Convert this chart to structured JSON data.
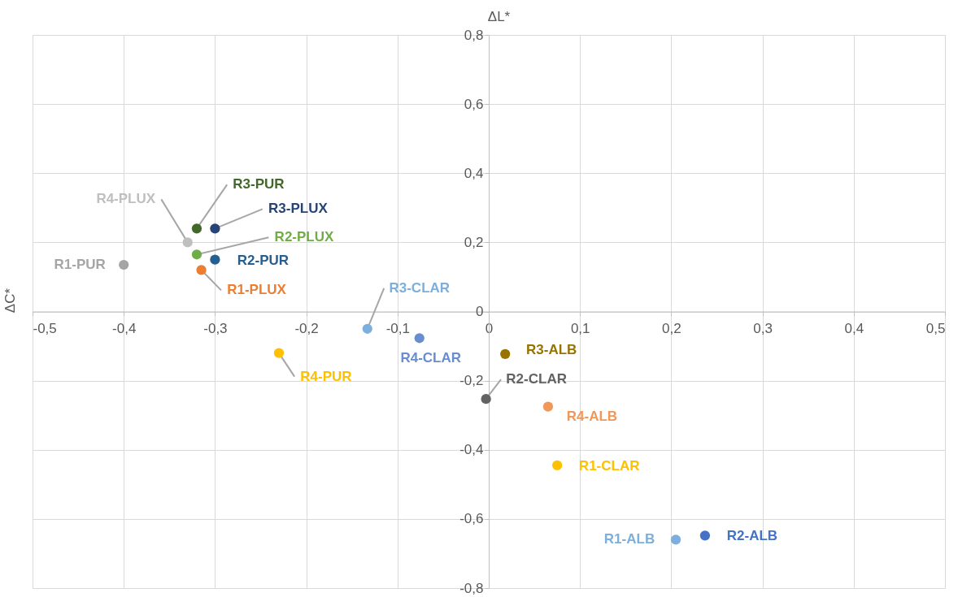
{
  "chart_data": {
    "type": "scatter",
    "xlabel": "ΔL*",
    "ylabel": "ΔC*",
    "xlim": [
      -0.5,
      0.5
    ],
    "ylim": [
      -0.8,
      0.8
    ],
    "xticks": [
      {
        "value": -0.5,
        "label": "-0,5"
      },
      {
        "value": -0.4,
        "label": "-0,4"
      },
      {
        "value": -0.3,
        "label": "-0,3"
      },
      {
        "value": -0.2,
        "label": "-0,2"
      },
      {
        "value": -0.1,
        "label": "-0,1"
      },
      0,
      {
        "value": 0.1,
        "label": "0,1"
      },
      {
        "value": 0.2,
        "label": "0,2"
      },
      {
        "value": 0.3,
        "label": "0,3"
      },
      {
        "value": 0.4,
        "label": "0,4"
      },
      {
        "value": 0.5,
        "label": "0,5"
      }
    ],
    "yticks": [
      {
        "value": -0.8,
        "label": "-0,8"
      },
      {
        "value": -0.6,
        "label": "-0,6"
      },
      {
        "value": -0.4,
        "label": "-0,4"
      },
      {
        "value": -0.2,
        "label": "-0,2"
      },
      0,
      {
        "value": 0.2,
        "label": "0,2"
      },
      {
        "value": 0.4,
        "label": "0,4"
      },
      {
        "value": 0.6,
        "label": "0,6"
      },
      {
        "value": 0.8,
        "label": "0,8"
      }
    ],
    "grid": true,
    "marker": "circle",
    "series": [
      {
        "name": "R1-PUR",
        "color": "#a5a5a5",
        "x": [
          -0.4
        ],
        "values": [
          0.135
        ]
      },
      {
        "name": "R4-PLUX",
        "color": "#bfbfbf",
        "x": [
          -0.33
        ],
        "values": [
          0.2
        ]
      },
      {
        "name": "R3-PUR",
        "color": "#43682b",
        "x": [
          -0.32
        ],
        "values": [
          0.24
        ]
      },
      {
        "name": "R3-PLUX",
        "color": "#264478",
        "x": [
          -0.3
        ],
        "values": [
          0.24
        ]
      },
      {
        "name": "R2-PLUX",
        "color": "#70ad47",
        "x": [
          -0.32
        ],
        "values": [
          0.165
        ]
      },
      {
        "name": "R2-PUR",
        "color": "#255e91",
        "x": [
          -0.3
        ],
        "values": [
          0.15
        ]
      },
      {
        "name": "R1-PLUX",
        "color": "#ed7d31",
        "x": [
          -0.315
        ],
        "values": [
          0.12
        ]
      },
      {
        "name": "R3-CLAR",
        "color": "#7cafdd",
        "x": [
          -0.133
        ],
        "values": [
          -0.05
        ]
      },
      {
        "name": "R4-CLAR",
        "color": "#698ed0",
        "x": [
          -0.076
        ],
        "values": [
          -0.077
        ]
      },
      {
        "name": "R4-PUR",
        "color": "#ffc000",
        "x": [
          -0.23
        ],
        "values": [
          -0.12
        ]
      },
      {
        "name": "R3-ALB",
        "color": "#997300",
        "x": [
          0.018
        ],
        "values": [
          -0.123
        ]
      },
      {
        "name": "R2-CLAR",
        "color": "#636363",
        "x": [
          -0.003
        ],
        "values": [
          -0.253
        ]
      },
      {
        "name": "R4-ALB",
        "color": "#f1975a",
        "x": [
          0.065
        ],
        "values": [
          -0.275
        ]
      },
      {
        "name": "R1-CLAR",
        "color": "#ffc000",
        "x": [
          0.075
        ],
        "values": [
          -0.445
        ]
      },
      {
        "name": "R1-ALB",
        "color": "#7cafdd",
        "x": [
          0.205
        ],
        "values": [
          -0.66
        ]
      },
      {
        "name": "R2-ALB",
        "color": "#4472c4",
        "x": [
          0.237
        ],
        "values": [
          -0.648
        ]
      }
    ]
  }
}
